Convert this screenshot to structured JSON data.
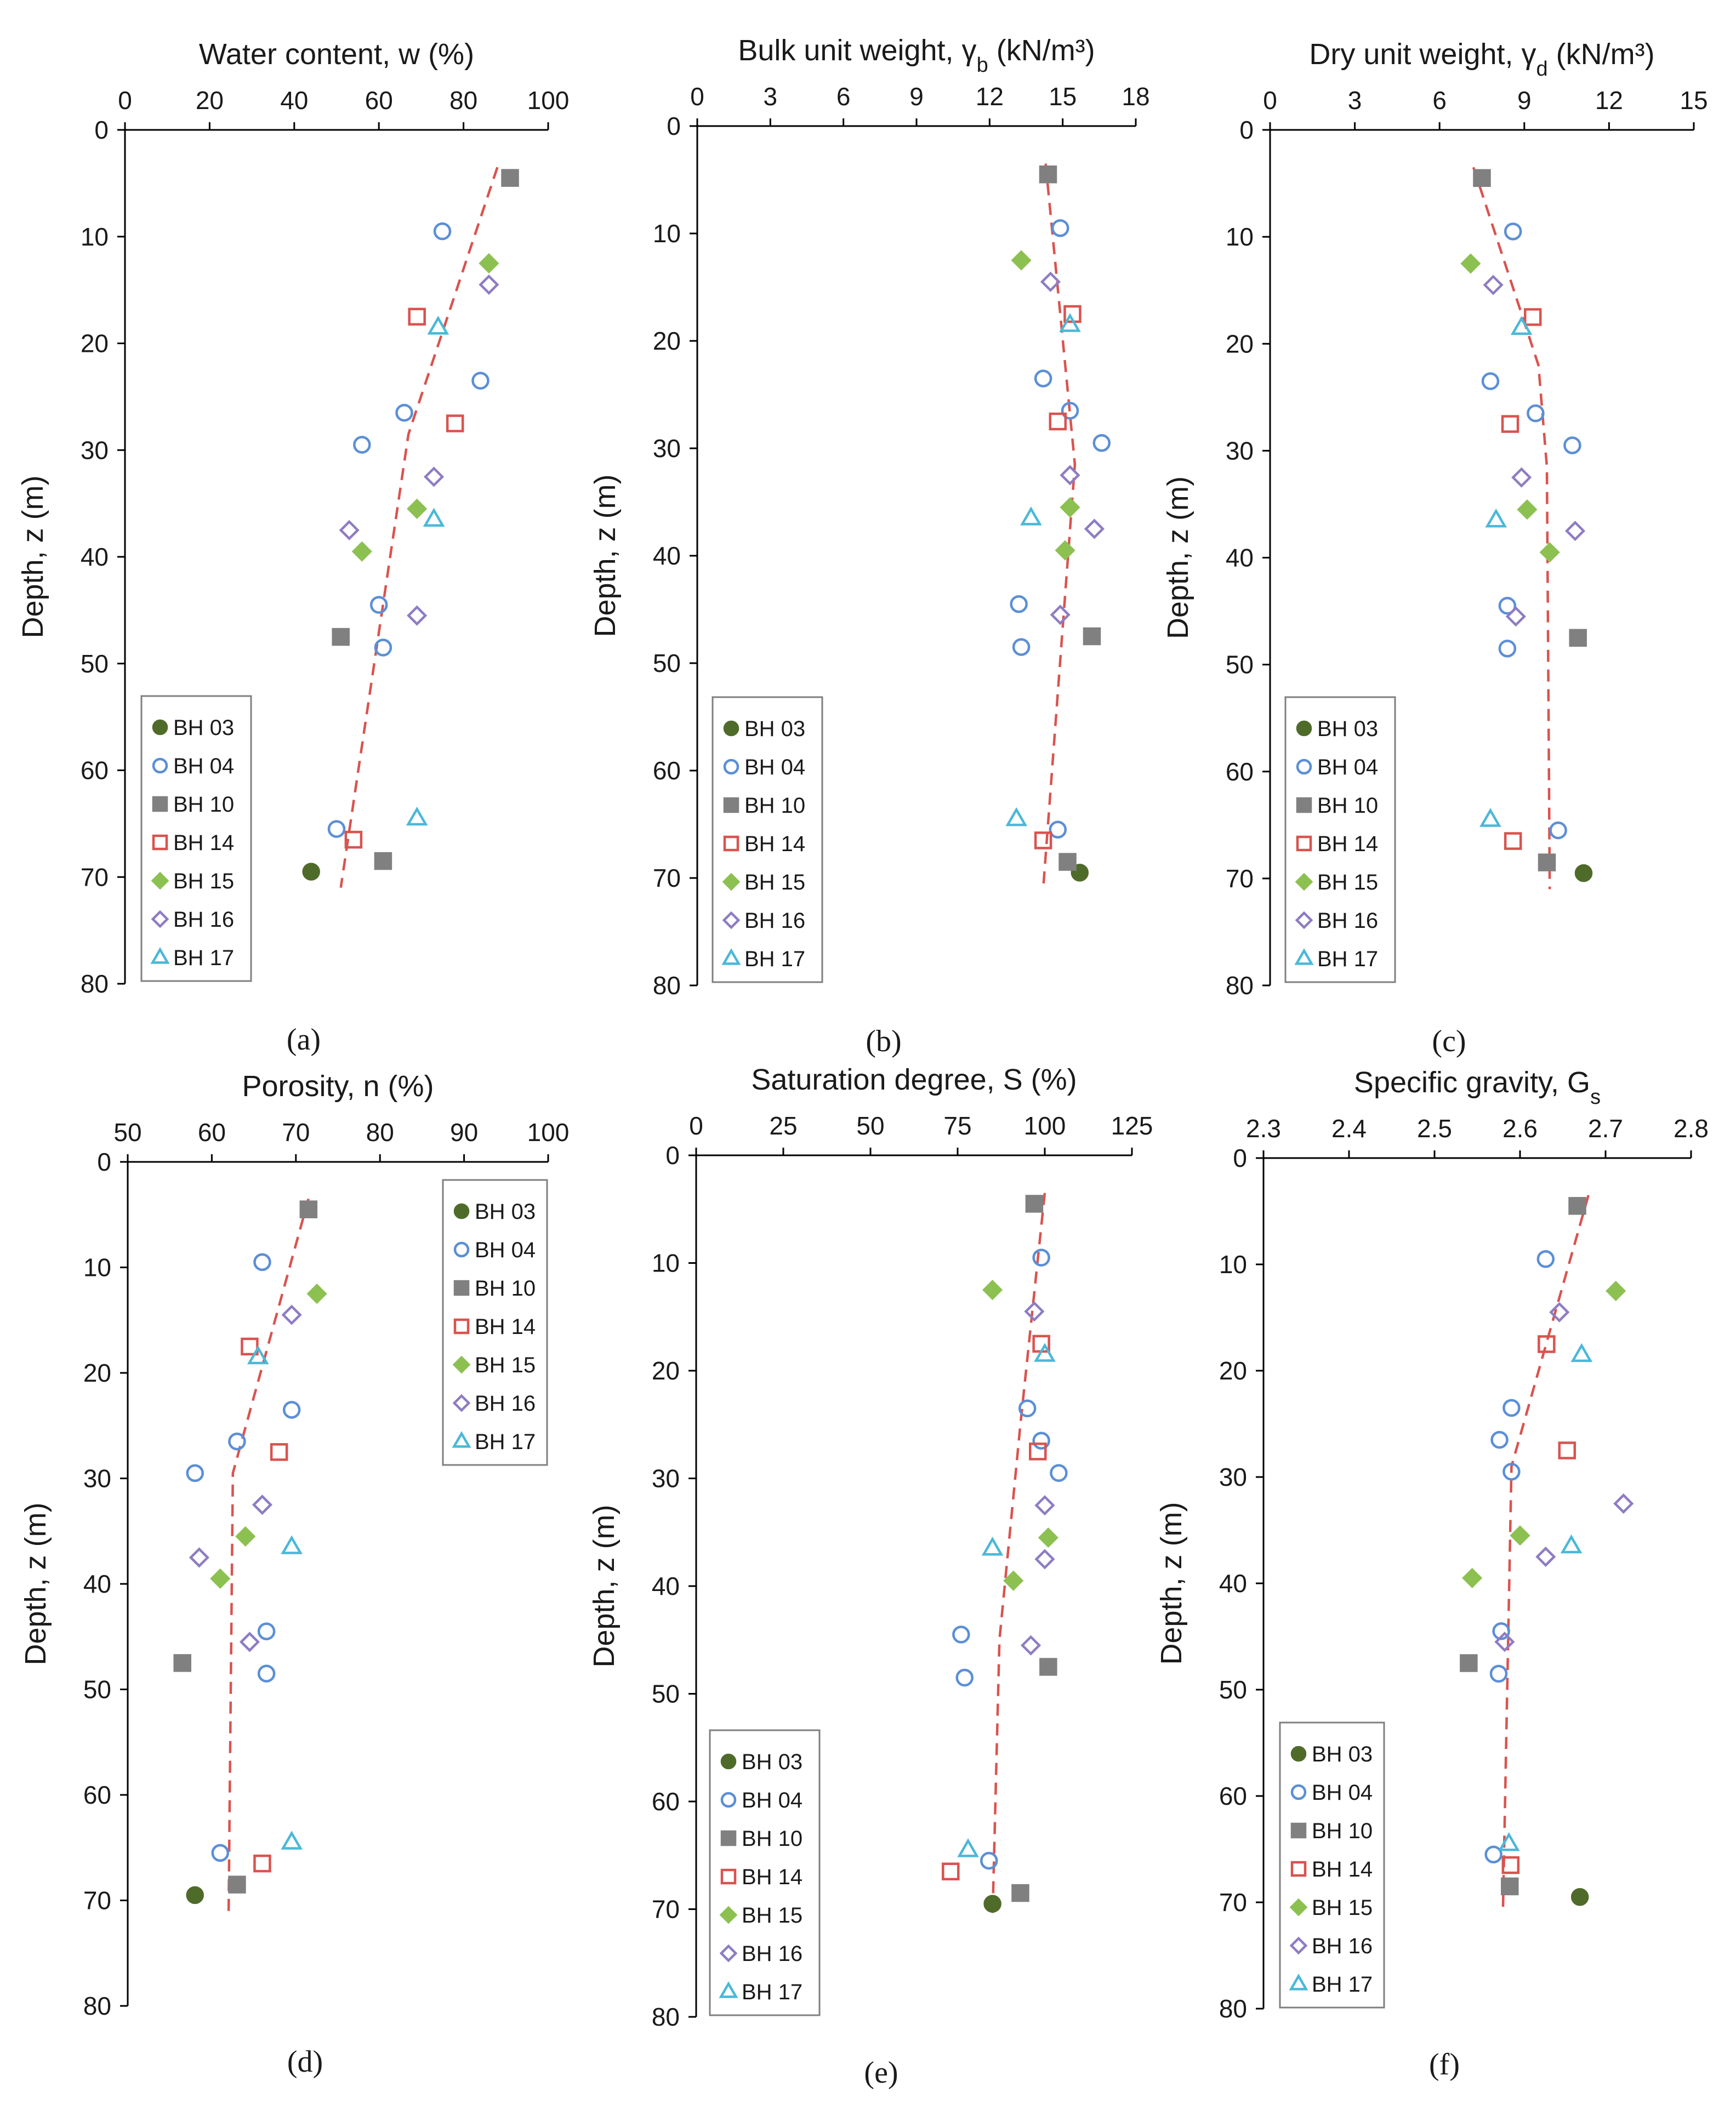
{
  "figure": {
    "panels": [
      "(a)",
      "(b)",
      "(c)",
      "(d)",
      "(e)",
      "(f)"
    ]
  },
  "legend_labels": [
    "BH 03",
    "BH 04",
    "BH 10",
    "BH 14",
    "BH 15",
    "BH 16",
    "BH 17"
  ],
  "style": {
    "axis_color": "#000000",
    "trend_color": "#d9534f",
    "bh03": "#4f6b2a",
    "bh04": "#5b8fd6",
    "bh10": "#808080",
    "bh14": "#d9534f",
    "bh15": "#8cc152",
    "bh16": "#8e7cc3",
    "bh17": "#4bb8d8"
  },
  "chart_data": [
    {
      "type": "scatter",
      "panel": "(a)",
      "title": "Water content,  w (%)",
      "ylabel": "Depth,  z (m)",
      "xlim": [
        0,
        100
      ],
      "ylim": [
        0,
        80
      ],
      "xticks": [
        "0",
        "20",
        "40",
        "60",
        "80",
        "100"
      ],
      "yticks": [
        "0",
        "10",
        "20",
        "30",
        "40",
        "50",
        "60",
        "70",
        "80"
      ],
      "legend_position": "bottom-left",
      "series": [
        {
          "name": "BH 03",
          "points": [
            [
              44,
              69.5
            ]
          ]
        },
        {
          "name": "BH 04",
          "points": [
            [
              75,
              9.5
            ],
            [
              84,
              23.5
            ],
            [
              66,
              26.5
            ],
            [
              56,
              29.5
            ],
            [
              60,
              44.5
            ],
            [
              61,
              48.5
            ],
            [
              50,
              65.5
            ]
          ]
        },
        {
          "name": "BH 10",
          "points": [
            [
              91,
              4.5
            ],
            [
              51,
              47.5
            ],
            [
              61,
              68.5
            ]
          ]
        },
        {
          "name": "BH 14",
          "points": [
            [
              69,
              17.5
            ],
            [
              78,
              27.5
            ],
            [
              54,
              66.5
            ]
          ]
        },
        {
          "name": "BH 15",
          "points": [
            [
              86,
              12.5
            ],
            [
              69,
              35.5
            ],
            [
              56,
              39.5
            ]
          ]
        },
        {
          "name": "BH 16",
          "points": [
            [
              86,
              14.5
            ],
            [
              73,
              32.5
            ],
            [
              53,
              37.5
            ],
            [
              69,
              45.5
            ]
          ]
        },
        {
          "name": "BH 17",
          "points": [
            [
              74,
              18.5
            ],
            [
              73,
              36.5
            ],
            [
              69,
              64.5
            ]
          ]
        }
      ],
      "trend": [
        [
          88,
          3.5
        ],
        [
          67,
          28.5
        ],
        [
          51,
          71
        ]
      ]
    },
    {
      "type": "scatter",
      "panel": "(b)",
      "title": "Bulk unit weight,  γ_b (kN/m³)",
      "ylabel": "Depth,  z (m)",
      "xlim": [
        0,
        18
      ],
      "ylim": [
        0,
        80
      ],
      "xticks": [
        "0",
        "3",
        "6",
        "9",
        "12",
        "15",
        "18"
      ],
      "yticks": [
        "0",
        "10",
        "20",
        "30",
        "40",
        "50",
        "60",
        "70",
        "80"
      ],
      "legend_position": "bottom-left",
      "series": [
        {
          "name": "BH 03",
          "points": [
            [
              15.7,
              69.5
            ]
          ]
        },
        {
          "name": "BH 04",
          "points": [
            [
              14.9,
              9.5
            ],
            [
              14.2,
              23.5
            ],
            [
              15.3,
              26.5
            ],
            [
              16.6,
              29.5
            ],
            [
              13.2,
              44.5
            ],
            [
              13.3,
              48.5
            ],
            [
              14.8,
              65.5
            ]
          ]
        },
        {
          "name": "BH 10",
          "points": [
            [
              14.4,
              4.5
            ],
            [
              16.2,
              47.5
            ],
            [
              15.2,
              68.5
            ]
          ]
        },
        {
          "name": "BH 14",
          "points": [
            [
              15.4,
              17.5
            ],
            [
              14.8,
              27.5
            ],
            [
              14.2,
              66.5
            ]
          ]
        },
        {
          "name": "BH 15",
          "points": [
            [
              13.3,
              12.5
            ],
            [
              15.3,
              35.5
            ],
            [
              15.1,
              39.5
            ]
          ]
        },
        {
          "name": "BH 16",
          "points": [
            [
              14.5,
              14.5
            ],
            [
              15.3,
              32.5
            ],
            [
              16.3,
              37.5
            ],
            [
              14.9,
              45.5
            ]
          ]
        },
        {
          "name": "BH 17",
          "points": [
            [
              15.3,
              18.5
            ],
            [
              13.7,
              36.5
            ],
            [
              13.1,
              64.5
            ]
          ]
        }
      ],
      "trend": [
        [
          14.3,
          3.5
        ],
        [
          15.5,
          31.5
        ],
        [
          14.2,
          71
        ]
      ]
    },
    {
      "type": "scatter",
      "panel": "(c)",
      "title": "Dry unit weight,  γ_d (kN/m³)",
      "ylabel": "Depth,  z (m)",
      "xlim": [
        0,
        15
      ],
      "ylim": [
        0,
        80
      ],
      "xticks": [
        "0",
        "3",
        "6",
        "9",
        "12",
        "15"
      ],
      "yticks": [
        "0",
        "10",
        "20",
        "30",
        "40",
        "50",
        "60",
        "70",
        "80"
      ],
      "legend_position": "bottom-left",
      "series": [
        {
          "name": "BH 03",
          "points": [
            [
              11.1,
              69.5
            ]
          ]
        },
        {
          "name": "BH 04",
          "points": [
            [
              8.6,
              9.5
            ],
            [
              7.8,
              23.5
            ],
            [
              9.4,
              26.5
            ],
            [
              10.7,
              29.5
            ],
            [
              8.4,
              44.5
            ],
            [
              8.4,
              48.5
            ],
            [
              10.2,
              65.5
            ]
          ]
        },
        {
          "name": "BH 10",
          "points": [
            [
              7.5,
              4.5
            ],
            [
              10.9,
              47.5
            ],
            [
              9.8,
              68.5
            ]
          ]
        },
        {
          "name": "BH 14",
          "points": [
            [
              9.3,
              17.5
            ],
            [
              8.5,
              27.5
            ],
            [
              8.6,
              66.5
            ]
          ]
        },
        {
          "name": "BH 15",
          "points": [
            [
              7.1,
              12.5
            ],
            [
              9.1,
              35.5
            ],
            [
              9.9,
              39.5
            ]
          ]
        },
        {
          "name": "BH 16",
          "points": [
            [
              7.9,
              14.5
            ],
            [
              8.9,
              32.5
            ],
            [
              10.8,
              37.5
            ],
            [
              8.7,
              45.5
            ]
          ]
        },
        {
          "name": "BH 17",
          "points": [
            [
              8.9,
              18.5
            ],
            [
              8.0,
              36.5
            ],
            [
              7.8,
              64.5
            ]
          ]
        }
      ],
      "trend": [
        [
          7.2,
          3.5
        ],
        [
          9.5,
          22
        ],
        [
          9.8,
          31.5
        ],
        [
          9.9,
          71
        ]
      ]
    },
    {
      "type": "scatter",
      "panel": "(d)",
      "title": "Porosity,  n (%)",
      "ylabel": "Depth,  z (m)",
      "xlim": [
        50,
        100
      ],
      "ylim": [
        0,
        80
      ],
      "xticks": [
        "50",
        "60",
        "70",
        "80",
        "90",
        "100"
      ],
      "yticks": [
        "0",
        "10",
        "20",
        "30",
        "40",
        "50",
        "60",
        "70",
        "80"
      ],
      "legend_position": "top-right",
      "series": [
        {
          "name": "BH 03",
          "points": [
            [
              58,
              69.5
            ]
          ]
        },
        {
          "name": "BH 04",
          "points": [
            [
              66,
              9.5
            ],
            [
              69.5,
              23.5
            ],
            [
              63,
              26.5
            ],
            [
              58,
              29.5
            ],
            [
              66.5,
              44.5
            ],
            [
              66.5,
              48.5
            ],
            [
              61,
              65.5
            ]
          ]
        },
        {
          "name": "BH 10",
          "points": [
            [
              71.5,
              4.5
            ],
            [
              56.5,
              47.5
            ],
            [
              63,
              68.5
            ]
          ]
        },
        {
          "name": "BH 14",
          "points": [
            [
              64.5,
              17.5
            ],
            [
              68,
              27.5
            ],
            [
              66,
              66.5
            ]
          ]
        },
        {
          "name": "BH 15",
          "points": [
            [
              72.5,
              12.5
            ],
            [
              64,
              35.5
            ],
            [
              61,
              39.5
            ]
          ]
        },
        {
          "name": "BH 16",
          "points": [
            [
              69.5,
              14.5
            ],
            [
              66,
              32.5
            ],
            [
              58.5,
              37.5
            ],
            [
              64.5,
              45.5
            ]
          ]
        },
        {
          "name": "BH 17",
          "points": [
            [
              65.5,
              18.5
            ],
            [
              69.5,
              36.5
            ],
            [
              69.5,
              64.5
            ]
          ]
        }
      ],
      "trend": [
        [
          71.5,
          3.5
        ],
        [
          62.5,
          29.5
        ],
        [
          62,
          71
        ]
      ]
    },
    {
      "type": "scatter",
      "panel": "(e)",
      "title": "Saturation degree,  S (%)",
      "ylabel": "Depth,  z (m)",
      "xlim": [
        0,
        125
      ],
      "ylim": [
        0,
        80
      ],
      "xticks": [
        "0",
        "25",
        "50",
        "75",
        "100",
        "125"
      ],
      "yticks": [
        "0",
        "10",
        "20",
        "30",
        "40",
        "50",
        "60",
        "70",
        "80"
      ],
      "legend_position": "bottom-left",
      "series": [
        {
          "name": "BH 03",
          "points": [
            [
              85,
              69.5
            ]
          ]
        },
        {
          "name": "BH 04",
          "points": [
            [
              99,
              9.5
            ],
            [
              95,
              23.5
            ],
            [
              99,
              26.5
            ],
            [
              104,
              29.5
            ],
            [
              76,
              44.5
            ],
            [
              77,
              48.5
            ],
            [
              84,
              65.5
            ]
          ]
        },
        {
          "name": "BH 10",
          "points": [
            [
              97,
              4.5
            ],
            [
              101,
              47.5
            ],
            [
              93,
              68.5
            ]
          ]
        },
        {
          "name": "BH 14",
          "points": [
            [
              99,
              17.5
            ],
            [
              98,
              27.5
            ],
            [
              73,
              66.5
            ]
          ]
        },
        {
          "name": "BH 15",
          "points": [
            [
              85,
              12.5
            ],
            [
              101,
              35.5
            ],
            [
              91,
              39.5
            ]
          ]
        },
        {
          "name": "BH 16",
          "points": [
            [
              97,
              14.5
            ],
            [
              100,
              32.5
            ],
            [
              100,
              37.5
            ],
            [
              96,
              45.5
            ]
          ]
        },
        {
          "name": "BH 17",
          "points": [
            [
              100,
              18.5
            ],
            [
              85,
              36.5
            ],
            [
              78,
              64.5
            ]
          ]
        }
      ],
      "trend": [
        [
          100,
          3.5
        ],
        [
          93,
          25
        ],
        [
          87,
          45
        ],
        [
          85,
          71
        ]
      ]
    },
    {
      "type": "scatter",
      "panel": "(f)",
      "title": "Specific gravity,  G_s",
      "ylabel": "Depth,  z (m)",
      "xlim": [
        2.3,
        2.8
      ],
      "ylim": [
        0,
        80
      ],
      "xticks": [
        "2.3",
        "2.4",
        "2.5",
        "2.6",
        "2.7",
        "2.8"
      ],
      "yticks": [
        "0",
        "10",
        "20",
        "30",
        "40",
        "50",
        "60",
        "70",
        "80"
      ],
      "legend_position": "bottom-left",
      "series": [
        {
          "name": "BH 03",
          "points": [
            [
              2.67,
              69.5
            ]
          ]
        },
        {
          "name": "BH 04",
          "points": [
            [
              2.63,
              9.5
            ],
            [
              2.59,
              23.5
            ],
            [
              2.576,
              26.5
            ],
            [
              2.59,
              29.5
            ],
            [
              2.578,
              44.5
            ],
            [
              2.575,
              48.5
            ],
            [
              2.569,
              65.5
            ]
          ]
        },
        {
          "name": "BH 10",
          "points": [
            [
              2.667,
              4.5
            ],
            [
              2.54,
              47.5
            ],
            [
              2.588,
              68.5
            ]
          ]
        },
        {
          "name": "BH 14",
          "points": [
            [
              2.631,
              17.5
            ],
            [
              2.655,
              27.5
            ],
            [
              2.589,
              66.5
            ]
          ]
        },
        {
          "name": "BH 15",
          "points": [
            [
              2.712,
              12.5
            ],
            [
              2.6,
              35.5
            ],
            [
              2.544,
              39.5
            ]
          ]
        },
        {
          "name": "BH 16",
          "points": [
            [
              2.646,
              14.5
            ],
            [
              2.721,
              32.5
            ],
            [
              2.63,
              37.5
            ],
            [
              2.582,
              45.5
            ]
          ]
        },
        {
          "name": "BH 17",
          "points": [
            [
              2.672,
              18.5
            ],
            [
              2.66,
              36.5
            ],
            [
              2.587,
              64.5
            ]
          ]
        }
      ],
      "trend": [
        [
          2.68,
          3.5
        ],
        [
          2.59,
          29
        ],
        [
          2.58,
          71
        ]
      ]
    }
  ]
}
